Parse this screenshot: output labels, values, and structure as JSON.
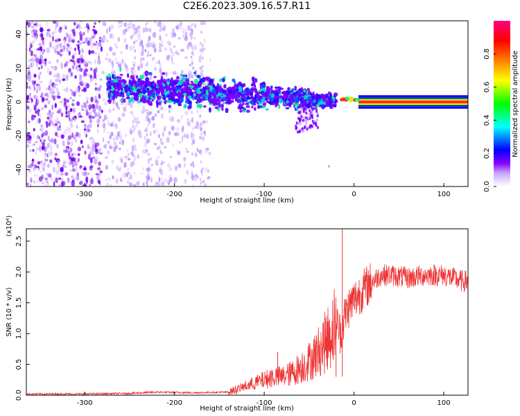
{
  "title": "C2E6.2023.309.16.57.R11",
  "chart_data": [
    {
      "type": "heatmap",
      "title": "",
      "xlabel": "Height of straight line (km)",
      "ylabel": "Frequency (Hz)",
      "xlim": [
        -365,
        127
      ],
      "ylim": [
        -50,
        48
      ],
      "xticks": [
        -300,
        -200,
        -100,
        0,
        100
      ],
      "xtick_labels": [
        "-300",
        "-200",
        "-100",
        "0",
        "100"
      ],
      "yticks": [
        -40,
        -20,
        0,
        20,
        40
      ],
      "ytick_labels": [
        "-40",
        "-20",
        "0",
        "20",
        "40"
      ],
      "ridge": {
        "x": [
          -320,
          -280,
          -240,
          -200,
          -160,
          -120,
          -80,
          -50,
          -30,
          -15,
          0,
          30,
          127
        ],
        "y": [
          10,
          9,
          8,
          7,
          6,
          4.5,
          3,
          1.5,
          0.8,
          0.6,
          1.5,
          0,
          0
        ]
      },
      "colorbar": {
        "label": "Normalized spectral amplitude",
        "range": [
          0,
          1
        ],
        "ticks": [
          0.0,
          0.2,
          0.4,
          0.6,
          0.8
        ],
        "tick_labels": [
          "0.0",
          "0.2",
          "0.4",
          "0.6",
          "0.8"
        ],
        "colors": [
          "#ffffff",
          "#8a00ff",
          "#0000ff",
          "#00ffff",
          "#00ff00",
          "#ffff00",
          "#ff8000",
          "#ff0000",
          "#ff0080"
        ]
      }
    },
    {
      "type": "line",
      "title": "",
      "xlabel": "Height of straight line (km)",
      "ylabel": "SNR (10 * v/v)",
      "scale_label": "(x10⁴)",
      "xlim": [
        -365,
        127
      ],
      "ylim": [
        0,
        2.7
      ],
      "xticks": [
        -300,
        -200,
        -100,
        0,
        100
      ],
      "xtick_labels": [
        "-300",
        "-200",
        "-100",
        "0",
        "100"
      ],
      "yticks": [
        0.0,
        0.5,
        1.0,
        1.5,
        2.0,
        2.5
      ],
      "ytick_labels": [
        "0.0",
        "0.5",
        "1.0",
        "1.5",
        "2.0",
        "2.5"
      ],
      "color": "#ee3333",
      "series": [
        {
          "x": [
            -365,
            -300,
            -250,
            -220,
            -180,
            -140,
            -130,
            -120,
            -110,
            -100,
            -90,
            -80,
            -70,
            -60,
            -50,
            -40,
            -30,
            -20,
            -15,
            -10,
            -5,
            0,
            10,
            20,
            30,
            40,
            60,
            80,
            100,
            110,
            120,
            127
          ],
          "y": [
            0.02,
            0.02,
            0.03,
            0.05,
            0.04,
            0.05,
            0.1,
            0.15,
            0.2,
            0.25,
            0.3,
            0.3,
            0.35,
            0.45,
            0.55,
            0.7,
            0.9,
            1.2,
            1.0,
            1.3,
            1.45,
            1.55,
            1.7,
            1.85,
            1.95,
            1.95,
            1.9,
            1.95,
            1.95,
            1.9,
            1.85,
            1.85
          ]
        }
      ],
      "spikes": [
        {
          "x": -13,
          "y": 2.7
        },
        {
          "x": -85,
          "y": 0.7
        },
        {
          "x": -20,
          "y": 1.4
        }
      ]
    }
  ]
}
